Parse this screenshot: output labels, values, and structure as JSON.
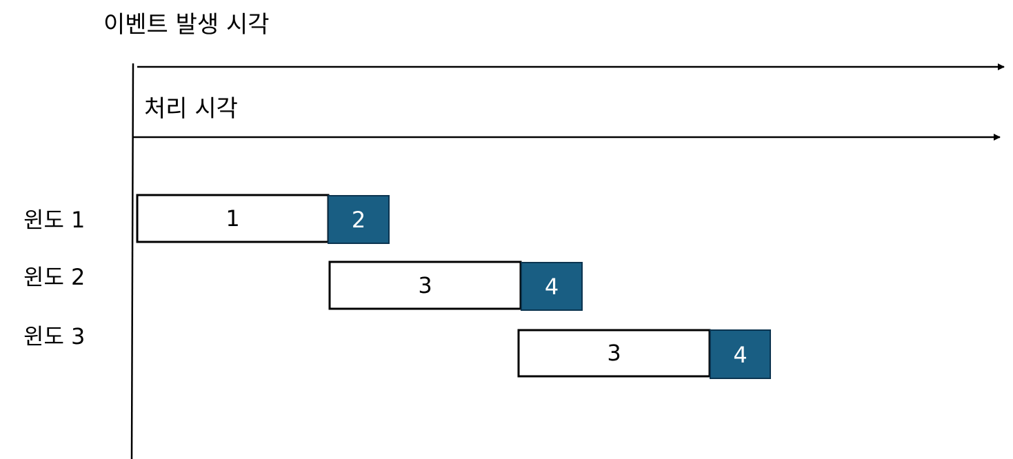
{
  "axes": {
    "event_time_label": "이벤트 발생 시각",
    "processing_time_label": "처리 시각"
  },
  "colors": {
    "line": "#000000",
    "box_fill": "#ffffff",
    "box_border": "#000000",
    "trigger_fill": "#195e83",
    "trigger_border": "#0b3450",
    "trigger_text": "#ffffff"
  },
  "windows": [
    {
      "label": "윈도 1",
      "segment": "1",
      "trigger": "2"
    },
    {
      "label": "윈도 2",
      "segment": "3",
      "trigger": "4"
    },
    {
      "label": "윈도 3",
      "segment": "3",
      "trigger": "4"
    }
  ]
}
